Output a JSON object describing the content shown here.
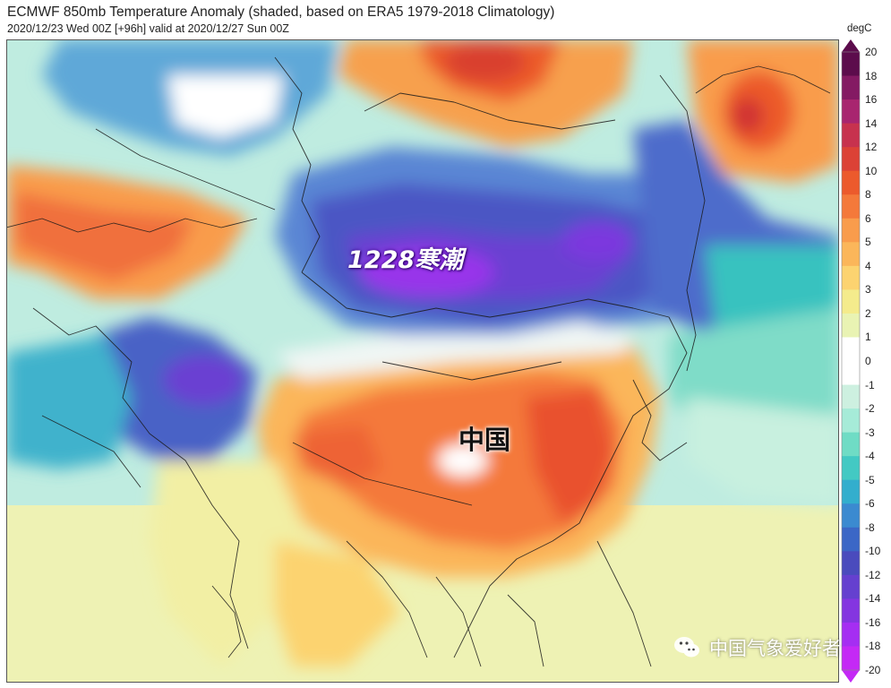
{
  "header": {
    "title": "ECMWF 850mb Temperature Anomaly (shaded, based on ERA5 1979-2018 Climatology)",
    "subtitle": "2020/12/23 Wed 00Z [+96h] valid at 2020/12/27 Sun 00Z"
  },
  "legend": {
    "unit": "degC",
    "ticks": [
      "20",
      "18",
      "16",
      "14",
      "12",
      "10",
      "8",
      "6",
      "5",
      "4",
      "3",
      "2",
      "1",
      "0",
      "-1",
      "-2",
      "-3",
      "-4",
      "-5",
      "-6",
      "-8",
      "-10",
      "-12",
      "-14",
      "-16",
      "-18",
      "-20"
    ],
    "colors": [
      "#5c0c4c",
      "#841a63",
      "#a8256f",
      "#c7324e",
      "#dc4236",
      "#ec5a2c",
      "#f4793a",
      "#f99c4c",
      "#fbb65a",
      "#fcd370",
      "#f4eb8c",
      "#e9f3b3",
      "#ffffff",
      "#ffffff",
      "#cdf0e0",
      "#a6ebd8",
      "#6fdcc5",
      "#43c9c3",
      "#33aecd",
      "#3b8ad0",
      "#3b67c6",
      "#4a4bbd",
      "#6540cf",
      "#8435e0",
      "#a52ef2",
      "#c429f5"
    ]
  },
  "annotations": {
    "cold_wave": "1228寒潮",
    "china": "中国"
  },
  "watermark": {
    "text": "中国气象爱好者",
    "icon": "wechat-icon"
  }
}
